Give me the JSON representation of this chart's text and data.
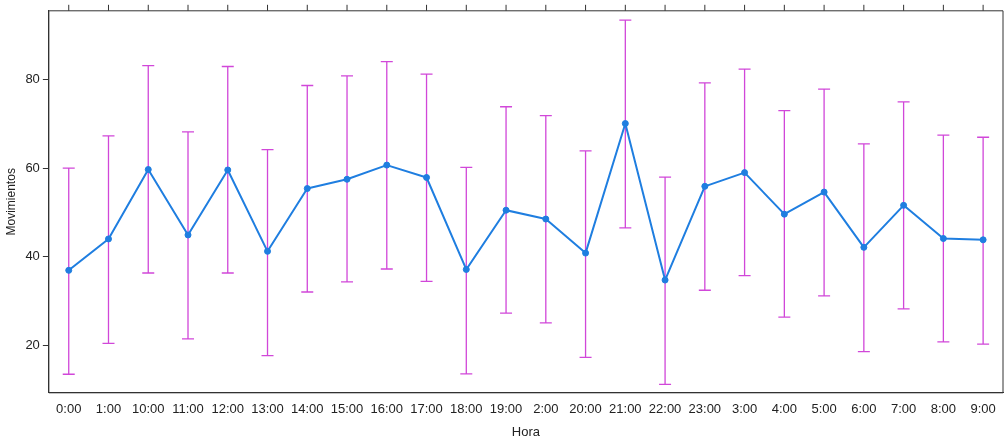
{
  "chart_data": {
    "type": "line",
    "xlabel": "Hora",
    "ylabel": "Movimientos",
    "categories": [
      "0:00",
      "1:00",
      "10:00",
      "11:00",
      "12:00",
      "13:00",
      "14:00",
      "15:00",
      "16:00",
      "17:00",
      "18:00",
      "19:00",
      "2:00",
      "20:00",
      "21:00",
      "22:00",
      "23:00",
      "3:00",
      "4:00",
      "5:00",
      "6:00",
      "7:00",
      "8:00",
      "9:00"
    ],
    "series": [
      {
        "color": "#1f7ee0",
        "values": [
          36.9,
          44.0,
          59.7,
          44.9,
          59.6,
          41.2,
          55.4,
          57.5,
          60.7,
          57.9,
          37.1,
          50.5,
          48.5,
          40.8,
          70.1,
          34.7,
          55.9,
          59.0,
          49.6,
          54.6,
          42.1,
          51.6,
          44.1,
          43.8
        ],
        "errors": [
          [
            13.4,
            60.0
          ],
          [
            20.4,
            67.3
          ],
          [
            36.3,
            83.2
          ],
          [
            21.4,
            68.2
          ],
          [
            36.3,
            83.0
          ],
          [
            17.6,
            64.2
          ],
          [
            32.0,
            78.7
          ],
          [
            34.3,
            80.9
          ],
          [
            37.2,
            84.1
          ],
          [
            34.4,
            81.3
          ],
          [
            13.5,
            60.2
          ],
          [
            27.2,
            73.9
          ],
          [
            25.0,
            71.9
          ],
          [
            17.2,
            63.9
          ],
          [
            46.5,
            93.5
          ],
          [
            11.1,
            58.0
          ],
          [
            32.4,
            79.3
          ],
          [
            35.7,
            82.4
          ],
          [
            26.3,
            73.0
          ],
          [
            31.1,
            77.9
          ],
          [
            18.5,
            65.5
          ],
          [
            28.2,
            75.0
          ],
          [
            20.7,
            67.5
          ],
          [
            20.2,
            67.0
          ]
        ]
      }
    ],
    "ylim": [
      9.2,
      95.6
    ],
    "yticks": [
      20,
      40,
      60,
      80
    ],
    "grid": false,
    "legend": false,
    "marker": "circle",
    "line_style": "solid"
  }
}
